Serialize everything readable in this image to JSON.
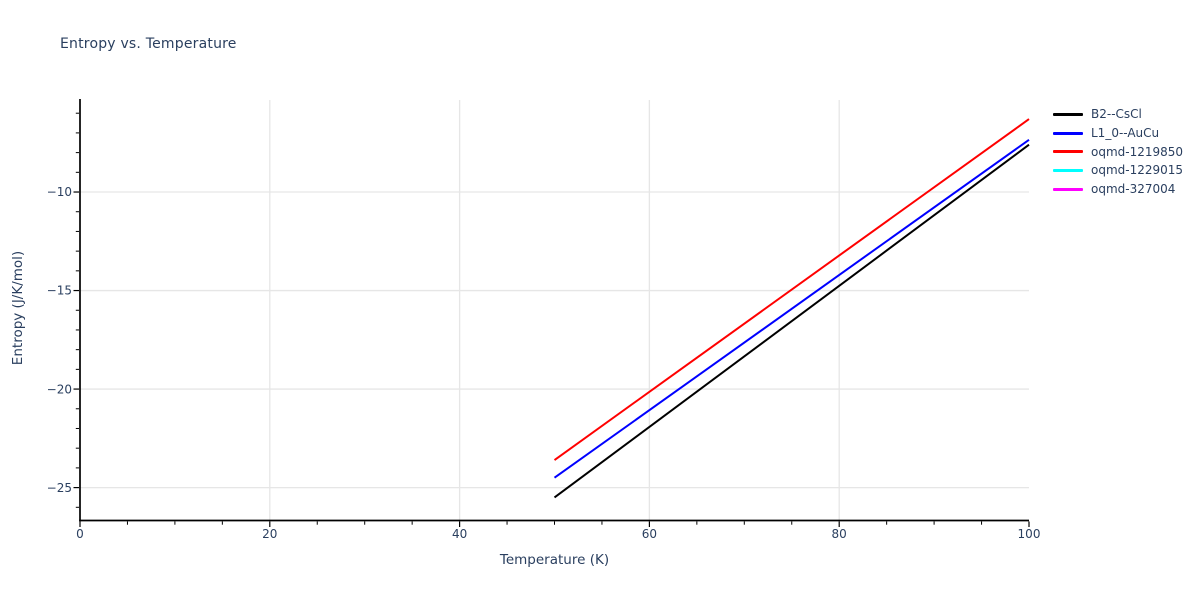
{
  "chart_data": {
    "type": "line",
    "title": "Entropy vs. Temperature",
    "xlabel": "Temperature (K)",
    "ylabel": "Entropy (J/K/mol)",
    "xlim": [
      0,
      100
    ],
    "ylim": [
      -26.67,
      -5.33
    ],
    "grid": "on",
    "legend_position": "top-right-outside",
    "x_ticks": [
      {
        "value": 0,
        "label": "0"
      },
      {
        "value": 20,
        "label": "20"
      },
      {
        "value": 40,
        "label": "40"
      },
      {
        "value": 60,
        "label": "60"
      },
      {
        "value": 80,
        "label": "80"
      },
      {
        "value": 100,
        "label": "100"
      }
    ],
    "y_ticks": [
      {
        "value": -10,
        "label": "−10"
      },
      {
        "value": -15,
        "label": "−15"
      },
      {
        "value": -20,
        "label": "−20"
      },
      {
        "value": -25,
        "label": "−25"
      }
    ],
    "x_minor_step": 5,
    "y_minor_step": 1,
    "x_grid_values": [
      20,
      40,
      60,
      80
    ],
    "y_grid_values": [
      -10,
      -15,
      -20,
      -25
    ],
    "series": [
      {
        "name": "B2--CsCl",
        "color": "#000000",
        "line_visible": true,
        "points": [
          [
            50,
            -25.5
          ],
          [
            100,
            -7.6
          ]
        ]
      },
      {
        "name": "L1_0--AuCu",
        "color": "#0000ff",
        "line_visible": true,
        "points": [
          [
            50,
            -24.5
          ],
          [
            100,
            -7.35
          ]
        ]
      },
      {
        "name": "oqmd-1219850",
        "color": "#ff0000",
        "line_visible": true,
        "points": [
          [
            50,
            -23.6
          ],
          [
            100,
            -6.3
          ]
        ]
      },
      {
        "name": "oqmd-1229015",
        "color": "#00ffff",
        "line_visible": false,
        "points": []
      },
      {
        "name": "oqmd-327004",
        "color": "#ff00ff",
        "line_visible": false,
        "points": []
      }
    ],
    "colors": {
      "text": "#2a3f5f",
      "grid": "#e6e6e6",
      "axis": "#000000"
    }
  }
}
